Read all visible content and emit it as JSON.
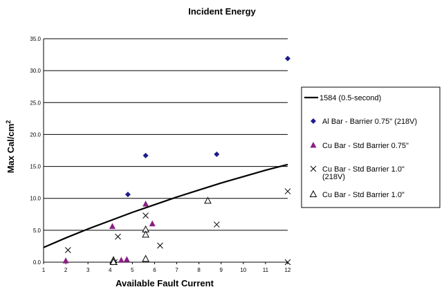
{
  "chart_data": {
    "type": "scatter",
    "title": "Incident Energy",
    "xlabel": "Available Fault Current",
    "ylabel": "Max Cal/cm",
    "ylabel_superscript": "2",
    "xlim": [
      1,
      12
    ],
    "ylim": [
      0,
      35
    ],
    "xticks": [
      "1",
      "2",
      "3",
      "4",
      "5",
      "6",
      "7",
      "8",
      "9",
      "10",
      "11",
      "12"
    ],
    "yticks": [
      "0.0",
      "5.0",
      "10.0",
      "15.0",
      "20.0",
      "25.0",
      "30.0",
      "35.0"
    ],
    "grid": "horizontal",
    "legend_position": "right",
    "series": [
      {
        "name": "1584 (0.5-second)",
        "kind": "line",
        "color": "#000000",
        "points": [
          [
            1,
            2.3
          ],
          [
            2,
            3.8
          ],
          [
            3,
            5.2
          ],
          [
            4,
            6.5
          ],
          [
            5,
            7.8
          ],
          [
            6,
            9.0
          ],
          [
            7,
            10.2
          ],
          [
            8,
            11.3
          ],
          [
            9,
            12.4
          ],
          [
            10,
            13.4
          ],
          [
            11,
            14.4
          ],
          [
            12,
            15.3
          ]
        ]
      },
      {
        "name": "Al Bar - Barrier 0.75\"  (218V)",
        "kind": "marker",
        "marker": "diamond",
        "color": "#1c1c8c",
        "points": [
          [
            4.8,
            10.6
          ],
          [
            5.6,
            16.7
          ],
          [
            8.8,
            16.9
          ],
          [
            12,
            31.9
          ]
        ]
      },
      {
        "name": "Cu Bar - Std Barrier 0.75\"",
        "kind": "marker",
        "marker": "triangle",
        "color": "#8b1e84",
        "points": [
          [
            2,
            0.2
          ],
          [
            4.1,
            5.6
          ],
          [
            4.5,
            0.3
          ],
          [
            4.75,
            0.4
          ],
          [
            5.6,
            9.1
          ],
          [
            5.9,
            6.0
          ]
        ]
      },
      {
        "name": "Cu Bar - Std Barrier 1.0\" (218V)",
        "legend_lines": [
          "Cu Bar - Std Barrier 1.0\"",
          "(218V)"
        ],
        "kind": "marker",
        "marker": "x",
        "color": "#000000",
        "points": [
          [
            2.1,
            1.9
          ],
          [
            4.2,
            0.0
          ],
          [
            4.35,
            4.0
          ],
          [
            5.6,
            7.3
          ],
          [
            6.25,
            2.6
          ],
          [
            8.8,
            5.9
          ],
          [
            12,
            11.1
          ],
          [
            12,
            0.0
          ]
        ]
      },
      {
        "name": "Cu Bar - Std Barrier 1.0\"",
        "kind": "marker",
        "marker": "triangle-open",
        "color": "#000000",
        "points": [
          [
            4.15,
            0.3
          ],
          [
            4.15,
            0.0
          ],
          [
            5.6,
            5.1
          ],
          [
            5.6,
            4.3
          ],
          [
            5.6,
            0.5
          ],
          [
            8.4,
            9.6
          ]
        ]
      }
    ]
  }
}
